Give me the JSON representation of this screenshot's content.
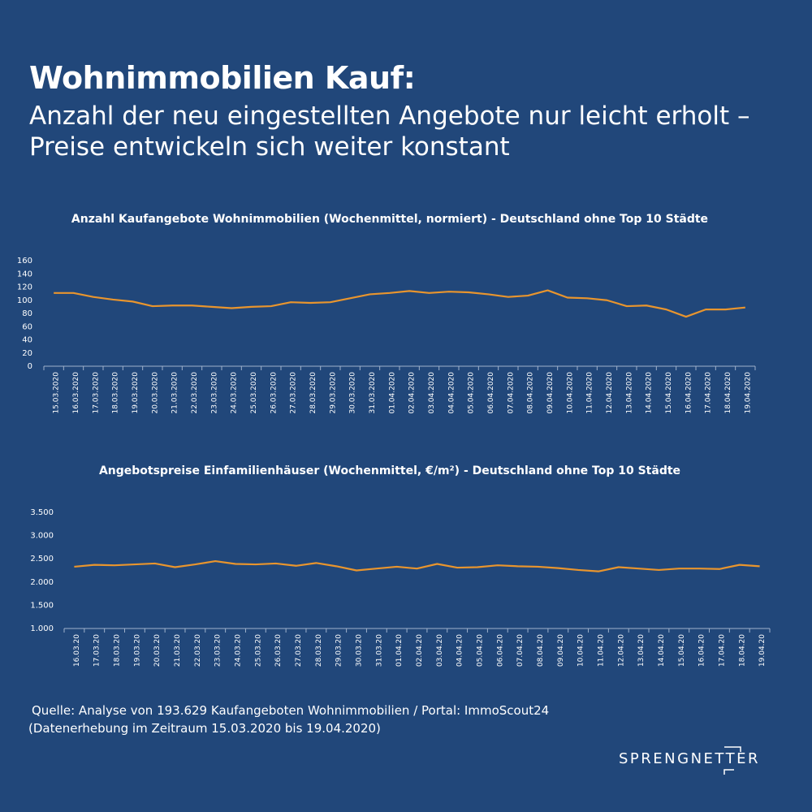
{
  "header": {
    "title": "Wohnimmobilien Kauf:",
    "subtitle": "Anzahl der neu eingestellten Angebote nur leicht erholt – Preise entwickeln sich weiter konstant"
  },
  "chart_data": [
    {
      "type": "line",
      "title": "Anzahl Kaufangebote Wohnimmobilien (Wochenmittel, normiert) - Deutschland ohne Top 10 Städte",
      "categories": [
        "15.03.2020",
        "16.03.2020",
        "17.03.2020",
        "18.03.2020",
        "19.03.2020",
        "20.03.2020",
        "21.03.2020",
        "22.03.2020",
        "23.03.2020",
        "24.03.2020",
        "25.03.2020",
        "26.03.2020",
        "27.03.2020",
        "28.03.2020",
        "29.03.2020",
        "30.03.2020",
        "31.03.2020",
        "01.04.2020",
        "02.04.2020",
        "03.04.2020",
        "04.04.2020",
        "05.04.2020",
        "06.04.2020",
        "07.04.2020",
        "08.04.2020",
        "09.04.2020",
        "10.04.2020",
        "11.04.2020",
        "12.04.2020",
        "13.04.2020",
        "14.04.2020",
        "15.04.2020",
        "16.04.2020",
        "17.04.2020",
        "18.04.2020",
        "19.04.2020"
      ],
      "values": [
        111,
        111,
        105,
        101,
        98,
        91,
        92,
        92,
        90,
        88,
        90,
        91,
        97,
        96,
        97,
        103,
        109,
        111,
        114,
        111,
        113,
        112,
        109,
        105,
        107,
        115,
        104,
        103,
        100,
        91,
        92,
        86,
        75,
        86,
        86,
        89
      ],
      "color": "#e8952e",
      "ylim": [
        0,
        160
      ],
      "yticks": [
        0,
        20,
        40,
        60,
        80,
        100,
        120,
        140,
        160
      ]
    },
    {
      "type": "line",
      "title": "Angebotspreise Einfamilienhäuser (Wochenmittel, €/m²) - Deutschland ohne Top 10 Städte",
      "categories": [
        "16.03.20",
        "17.03.20",
        "18.03.20",
        "19.03.20",
        "20.03.20",
        "21.03.20",
        "22.03.20",
        "23.03.20",
        "24.03.20",
        "25.03.20",
        "26.03.20",
        "27.03.20",
        "28.03.20",
        "29.03.20",
        "30.03.20",
        "31.03.20",
        "01.04.20",
        "02.04.20",
        "03.04.20",
        "04.04.20",
        "05.04.20",
        "06.04.20",
        "07.04.20",
        "08.04.20",
        "09.04.20",
        "10.04.20",
        "11.04.20",
        "12.04.20",
        "13.04.20",
        "14.04.20",
        "15.04.20",
        "16.04.20",
        "17.04.20",
        "18.04.20",
        "19.04.20"
      ],
      "values": [
        2330,
        2370,
        2360,
        2380,
        2400,
        2320,
        2380,
        2450,
        2390,
        2380,
        2400,
        2350,
        2410,
        2340,
        2250,
        2290,
        2330,
        2290,
        2390,
        2310,
        2320,
        2360,
        2340,
        2330,
        2300,
        2260,
        2230,
        2320,
        2290,
        2260,
        2290,
        2290,
        2280,
        2370,
        2340
      ],
      "color": "#e8952e",
      "ylim": [
        1000,
        3500
      ],
      "yticks": [
        {
          "value": 1000,
          "label": "1.000"
        },
        {
          "value": 1500,
          "label": "1.500"
        },
        {
          "value": 2000,
          "label": "2.000"
        },
        {
          "value": 2500,
          "label": "2.500"
        },
        {
          "value": 3000,
          "label": "3.000"
        },
        {
          "value": 3500,
          "label": "3.500"
        }
      ]
    }
  ],
  "footer": {
    "source": "Quelle: Analyse von 193.629 Kaufangeboten Wohnimmobilien / Portal: ImmoScout24",
    "period": "(Datenerhebung im Zeitraum 15.03.2020 bis 19.04.2020)",
    "logo": "SPRENGNETTER"
  }
}
